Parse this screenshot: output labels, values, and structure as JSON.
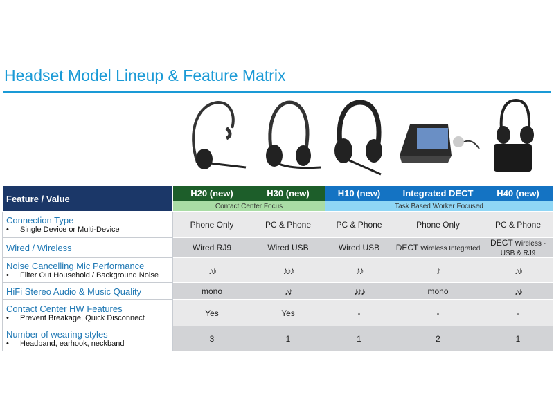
{
  "title": "Headset Model Lineup & Feature Matrix",
  "colors": {
    "title": "#1a9ad6",
    "header_dark": "#1b3768",
    "green": "#1d5e2a",
    "blue": "#1473c3",
    "light_green": "#a9dca5",
    "light_blue": "#8fd6f5"
  },
  "header": {
    "feature_label": "Feature / Value",
    "models": [
      {
        "name": "H20",
        "tag": " (new)"
      },
      {
        "name": "H30",
        "tag": " (new)"
      },
      {
        "name": "H10",
        "tag": " (new)"
      },
      {
        "name": "Integrated DECT",
        "tag": ""
      },
      {
        "name": "H40",
        "tag": " (new)"
      }
    ],
    "groups": [
      "Contact Center Focus",
      "Task Based Worker Focused"
    ]
  },
  "rows": [
    {
      "label": "Connection Type",
      "sub": "Single Device or Multi-Device",
      "values": [
        "Phone Only",
        "PC & Phone",
        "PC & Phone",
        "Phone Only",
        "PC & Phone"
      ]
    },
    {
      "label": "Wired / Wireless",
      "values": [
        "Wired RJ9",
        "Wired USB",
        "Wired USB",
        {
          "main": "DECT",
          "small": " Wireless Integrated"
        },
        {
          "main": "DECT",
          "small": " Wireless - USB & RJ9"
        }
      ]
    },
    {
      "label": "Noise Cancelling Mic Performance",
      "sub": "Filter Out Household / Background Noise",
      "values": [
        "♪♪",
        "♪♪♪",
        "♪♪",
        "♪",
        "♪♪"
      ]
    },
    {
      "label": "HiFi Stereo Audio & Music Quality",
      "values": [
        "mono",
        "♪♪",
        "♪♪♪",
        "mono",
        "♪♪"
      ]
    },
    {
      "label": "Contact Center HW Features",
      "sub": "Prevent Breakage, Quick Disconnect",
      "values": [
        "Yes",
        "Yes",
        "-",
        "-",
        "-"
      ]
    },
    {
      "label": "Number of wearing styles",
      "sub": "Headband, earhook, neckband",
      "values": [
        "3",
        "1",
        "1",
        "2",
        "1"
      ]
    }
  ]
}
